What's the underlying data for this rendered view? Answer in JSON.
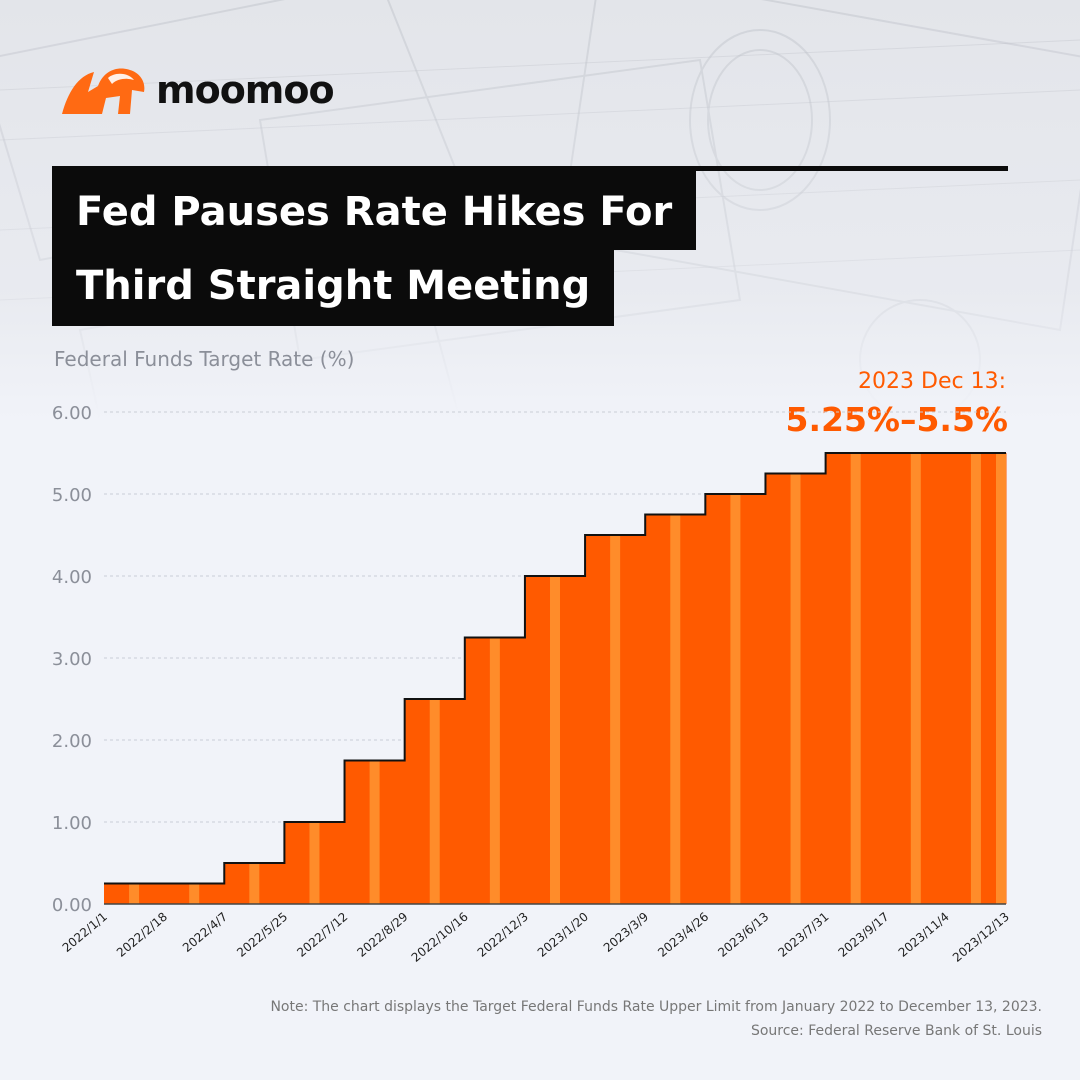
{
  "brand": {
    "name": "moomoo",
    "color": "#ff6a13"
  },
  "title": {
    "line1": "Fed Pauses Rate Hikes For",
    "line2": "Third Straight Meeting"
  },
  "callout": {
    "date": "2023 Dec 13:",
    "value": "5.25%–5.5%"
  },
  "footer": {
    "note": "Note: The chart displays the Target Federal Funds Rate Upper Limit from January 2022 to December 13, 2023.",
    "source": "Source: Federal Reserve Bank of St. Louis"
  },
  "colors": {
    "bar": "#ff5a00",
    "bar_highlight": "#ff8c2a",
    "step_line": "#111111",
    "grid": "#c9cdd6",
    "accent": "#ff5a00"
  },
  "chart_data": {
    "type": "area",
    "title": "",
    "ylabel": "Federal Funds Target Rate (%)",
    "xlabel": "",
    "ylim": [
      0,
      6
    ],
    "yticks": [
      "0.00",
      "1.00",
      "2.00",
      "3.00",
      "4.00",
      "5.00",
      "6.00"
    ],
    "grid": true,
    "categories": [
      "2022/1/1",
      "2022/2/18",
      "2022/4/7",
      "2022/5/25",
      "2022/7/12",
      "2022/8/29",
      "2022/10/16",
      "2022/12/3",
      "2023/1/20",
      "2023/3/9",
      "2023/4/26",
      "2023/6/13",
      "2023/7/31",
      "2023/9/17",
      "2023/11/4",
      "2023/12/13"
    ],
    "series": [
      {
        "values": [
          0.25,
          0.25,
          0.5,
          1.0,
          1.75,
          2.5,
          3.25,
          4.0,
          4.5,
          4.75,
          5.0,
          5.25,
          5.5,
          5.5,
          5.5,
          5.5
        ]
      }
    ]
  }
}
